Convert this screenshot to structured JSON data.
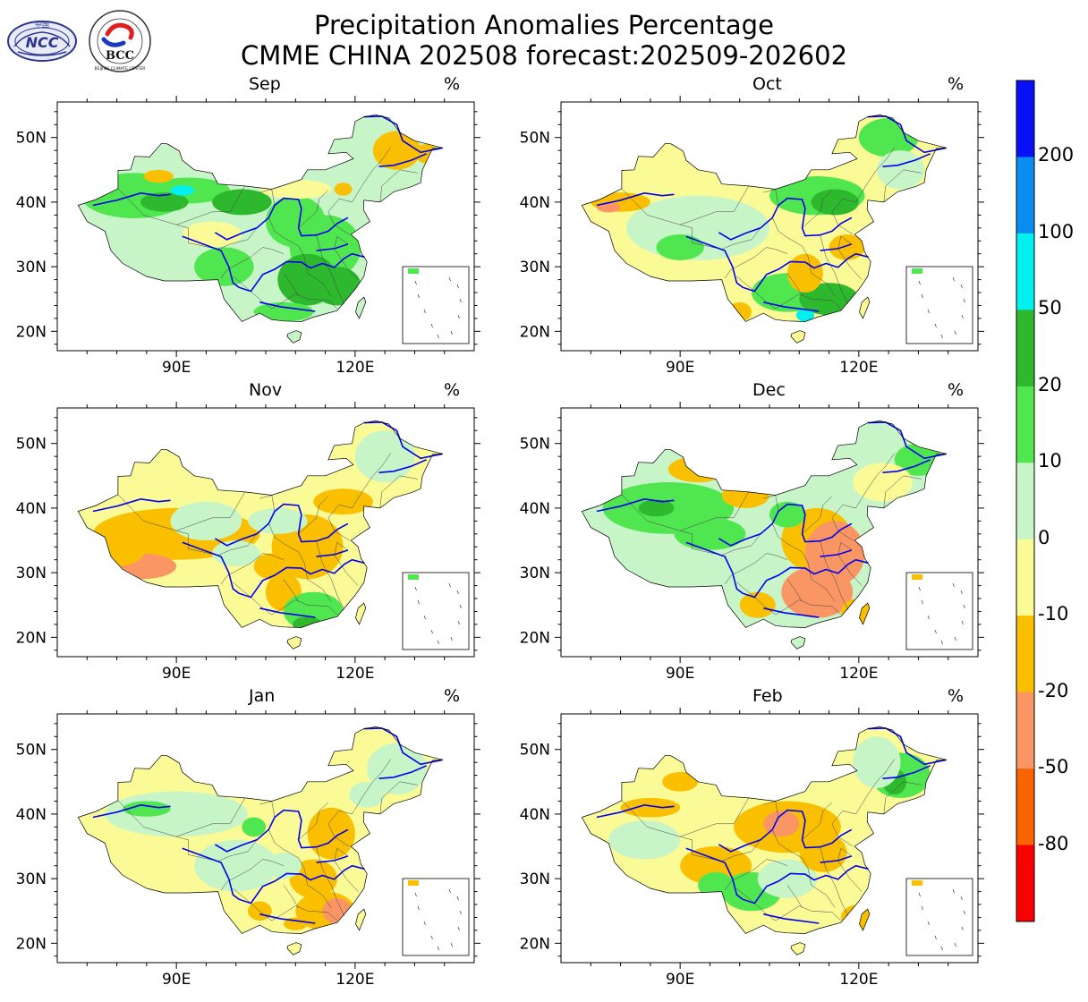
{
  "title": {
    "line1": "Precipitation Anomalies Percentage",
    "line2": "CMME CHINA 202508 forecast:202509-202602"
  },
  "logos": [
    {
      "name": "ncc-logo",
      "text": "NCC",
      "arc_text": "中国"
    },
    {
      "name": "bcc-logo",
      "text": "BCC",
      "arc_text": "BEIJING CLIMATE CENTER"
    }
  ],
  "axes": {
    "lat_ticks": [
      "20N",
      "30N",
      "40N",
      "50N"
    ],
    "lon_ticks": [
      "90E",
      "120E"
    ]
  },
  "unit": "%",
  "panels": [
    {
      "month": "Sep",
      "regime": "wet"
    },
    {
      "month": "Oct",
      "regime": "mixed"
    },
    {
      "month": "Nov",
      "regime": "dry-southwest"
    },
    {
      "month": "Dec",
      "regime": "dry-southeast"
    },
    {
      "month": "Jan",
      "regime": "mixed-dry"
    },
    {
      "month": "Feb",
      "regime": "dry-north"
    }
  ],
  "colorbar": {
    "labels": [
      "200",
      "100",
      "50",
      "20",
      "10",
      "0",
      "-10",
      "-20",
      "-50",
      "-80"
    ],
    "colors": [
      "#0a10f5",
      "#0a8cf0",
      "#00f0f0",
      "#2db82d",
      "#50e650",
      "#c8f5c8",
      "#fafa96",
      "#fac000",
      "#fa9664",
      "#fa6400",
      "#fa0000"
    ]
  },
  "palette": {
    "wet_strong": "#2db82d",
    "wet": "#50e650",
    "wet_light": "#c8f5c8",
    "dry_light": "#fafa96",
    "dry": "#fac000",
    "dry_strong": "#fa9664",
    "very_wet": "#00f0f0",
    "river": "#0000ee",
    "border": "#000000"
  }
}
